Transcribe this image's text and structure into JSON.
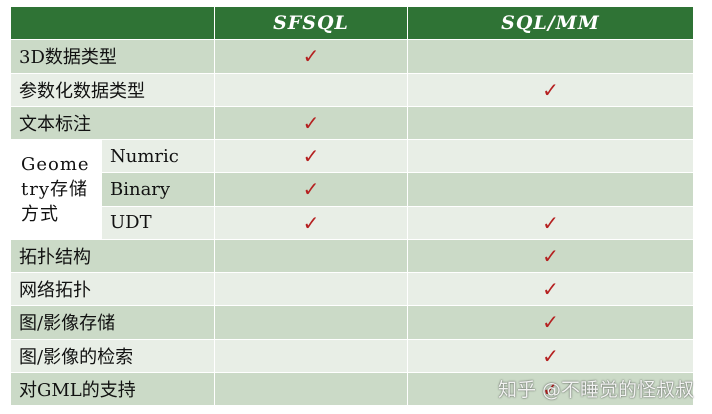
{
  "header": {
    "blank": "",
    "col1": "SFSQL",
    "col2": "SQL/MM"
  },
  "rows": {
    "r0": {
      "label": "3D数据类型",
      "sfsql": "✓",
      "sqlmm": ""
    },
    "r1": {
      "label": "参数化数据类型",
      "sfsql": "",
      "sqlmm": "✓"
    },
    "r2": {
      "label": "文本标注",
      "sfsql": "✓",
      "sqlmm": ""
    },
    "geometry_group": {
      "label": "Geome try存储 方式",
      "numric": {
        "label": "Numric",
        "sfsql": "✓",
        "sqlmm": ""
      },
      "binary": {
        "label": "Binary",
        "sfsql": "✓",
        "sqlmm": ""
      },
      "udt": {
        "label": "UDT",
        "sfsql": "✓",
        "sqlmm": "✓"
      }
    },
    "r6": {
      "label": "拓扑结构",
      "sfsql": "",
      "sqlmm": "✓"
    },
    "r7": {
      "label": "网络拓扑",
      "sfsql": "",
      "sqlmm": "✓"
    },
    "r8": {
      "label": "图/影像存储",
      "sfsql": "",
      "sqlmm": "✓"
    },
    "r9": {
      "label": "图/影像的检索",
      "sfsql": "",
      "sqlmm": "✓"
    },
    "r10": {
      "label": "对GML的支持",
      "sfsql": "",
      "sqlmm": "✓"
    }
  },
  "watermark": "知乎 @不睡觉的怪叔叔",
  "colors": {
    "header": "#2f7335",
    "row_dark": "#cbdac7",
    "row_light": "#e8eee6",
    "check": "#b52020"
  }
}
